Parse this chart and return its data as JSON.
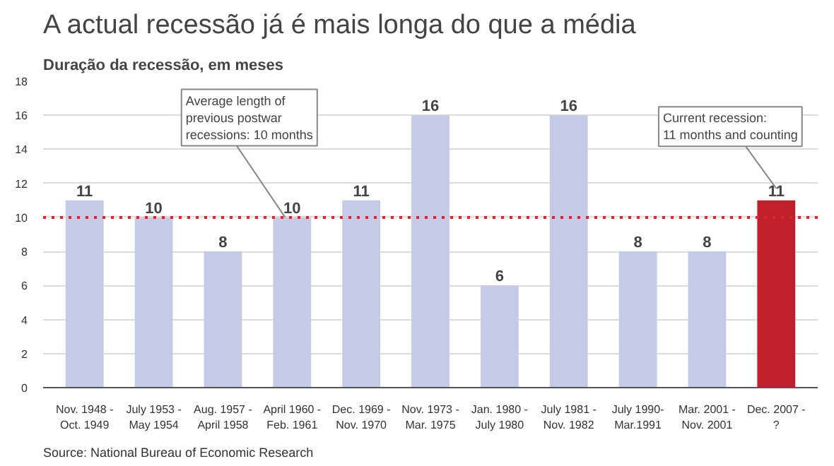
{
  "chart_data": {
    "type": "bar",
    "title": "A actual recessão já é mais longa do que a média",
    "subtitle": "Duração da recessão, em meses",
    "categories": [
      "Nov. 1948 -\nOct. 1949",
      "July 1953 -\nMay 1954",
      "Aug. 1957 -\nApril 1958",
      "April 1960 -\nFeb. 1961",
      "Dec. 1969 -\nNov. 1970",
      "Nov. 1973 -\nMar. 1975",
      "Jan. 1980 -\nJuly 1980",
      "July 1981 -\nNov. 1982",
      "July 1990-\nMar.1991",
      "Mar. 2001 -\nNov. 2001",
      "Dec. 2007 -\n?"
    ],
    "values": [
      11,
      10,
      8,
      10,
      11,
      16,
      6,
      16,
      8,
      8,
      11
    ],
    "colors": [
      "#c5cbe6",
      "#c5cbe6",
      "#c5cbe6",
      "#c5cbe6",
      "#c5cbe6",
      "#c5cbe6",
      "#c5cbe6",
      "#c5cbe6",
      "#c5cbe6",
      "#c5cbe6",
      "#c0202c"
    ],
    "ylim": [
      0,
      18
    ],
    "yticks": [
      0,
      2,
      4,
      6,
      8,
      10,
      12,
      14,
      16,
      18
    ],
    "grid": "y",
    "data_labels": true,
    "ref_lines": [
      {
        "axis": "y",
        "value": 10,
        "label": "Average length of\nprevious postwar\nrecessions: 10 months",
        "color": "#d42a2a",
        "line_style": "dotted"
      }
    ],
    "annotations": [
      "Current recession:\n11 months and counting",
      "Source: National Bureau of Economic Research"
    ]
  }
}
